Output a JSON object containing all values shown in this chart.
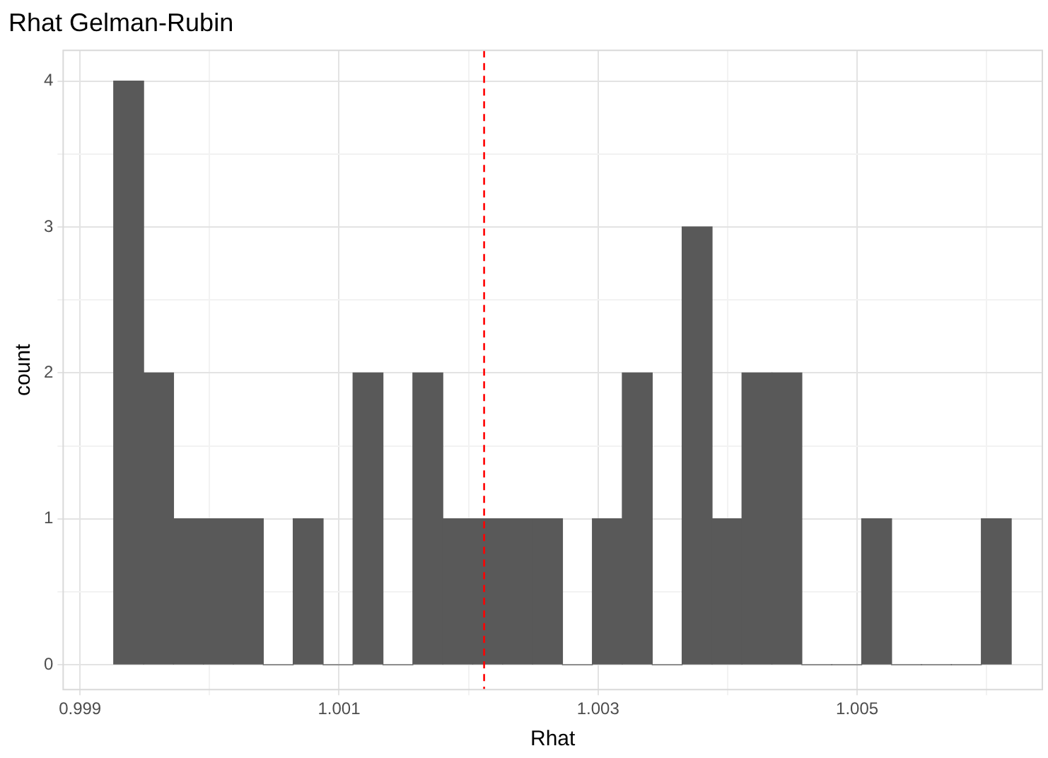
{
  "chart_data": {
    "type": "histogram",
    "title": "Rhat Gelman-Rubin",
    "xlabel": "Rhat",
    "ylabel": "count",
    "bins": [
      0.99926,
      0.999491,
      0.999722,
      0.999953,
      1.000184,
      1.000415,
      1.000646,
      1.000877,
      1.001108,
      1.001339,
      1.00157,
      1.001801,
      1.002032,
      1.002263,
      1.002494,
      1.002725,
      1.002956,
      1.003187,
      1.003418,
      1.003649,
      1.00388,
      1.004111,
      1.004342,
      1.004573,
      1.004804,
      1.005035,
      1.005266,
      1.005497,
      1.005728,
      1.005959,
      1.00619
    ],
    "values": [
      4,
      2,
      1,
      1,
      1,
      0,
      1,
      0,
      2,
      0,
      2,
      1,
      1,
      1,
      1,
      0,
      1,
      2,
      0,
      3,
      1,
      2,
      2,
      0,
      0,
      1,
      0,
      0,
      0,
      1
    ],
    "color": "#595959",
    "xlim": [
      0.99887,
      1.00643
    ],
    "xticks": [
      0.999,
      {
        "value": 1.0,
        "label": null
      },
      1.001,
      {
        "value": 1.002,
        "label": null
      },
      1.003,
      {
        "value": 1.004,
        "label": null
      },
      1.005,
      {
        "value": 1.006,
        "label": null
      }
    ],
    "ylim": [
      -0.17,
      4.21
    ],
    "yticks": [
      0,
      {
        "value": 0.5,
        "label": null
      },
      1,
      {
        "value": 1.5,
        "label": null
      },
      2,
      {
        "value": 2.5,
        "label": null
      },
      3,
      {
        "value": 3.5,
        "label": null
      },
      4
    ],
    "grid": true,
    "ref_lines": [
      {
        "axis": "x",
        "value": 1.00212,
        "color": "#ff0000",
        "line_style": "dashed"
      }
    ]
  }
}
